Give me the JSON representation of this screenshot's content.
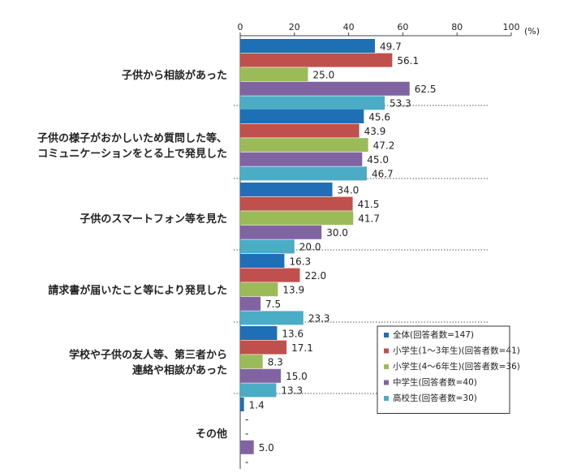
{
  "chart_data": {
    "type": "bar",
    "orientation": "horizontal",
    "unit": "(%)",
    "xlim": [
      0,
      100
    ],
    "x_ticks": [
      "0",
      "20",
      "40",
      "60",
      "80",
      "100"
    ],
    "grid": false,
    "legend_position": "bottom-right",
    "categories": [
      [
        "子供から相談があった"
      ],
      [
        "子供の様子がおかしいため質問した等、",
        "コミュニケーションをとる上で発見した"
      ],
      [
        "子供のスマートフォン等を見た"
      ],
      [
        "請求書が届いたこと等により発見した"
      ],
      [
        "学校や子供の友人等、第三者から",
        "連絡や相談があった"
      ],
      [
        "その他"
      ]
    ],
    "series": [
      {
        "name": "全体(回答者数=147)",
        "color": "#1f6fb6",
        "values": [
          49.7,
          45.6,
          34.0,
          16.3,
          13.6,
          1.4
        ],
        "labels": [
          "49.7",
          "45.6",
          "34.0",
          "16.3",
          "13.6",
          "1.4"
        ]
      },
      {
        "name": "小学生(1～3年生)(回答者数=41)",
        "color": "#c0504d",
        "values": [
          56.1,
          43.9,
          41.5,
          22.0,
          17.1,
          null
        ],
        "labels": [
          "56.1",
          "43.9",
          "41.5",
          "22.0",
          "17.1",
          "-"
        ]
      },
      {
        "name": "小学生(4～6年生)(回答者数=36)",
        "color": "#9bbb59",
        "values": [
          25.0,
          47.2,
          41.7,
          13.9,
          8.3,
          null
        ],
        "labels": [
          "25.0",
          "47.2",
          "41.7",
          "13.9",
          "8.3",
          "-"
        ]
      },
      {
        "name": "中学生(回答者数=40)",
        "color": "#8064a2",
        "values": [
          62.5,
          45.0,
          30.0,
          7.5,
          15.0,
          5.0
        ],
        "labels": [
          "62.5",
          "45.0",
          "30.0",
          "7.5",
          "15.0",
          "5.0"
        ]
      },
      {
        "name": "高校生(回答者数=30)",
        "color": "#4bacc6",
        "values": [
          53.3,
          46.7,
          20.0,
          23.3,
          13.3,
          null
        ],
        "labels": [
          "53.3",
          "46.7",
          "20.0",
          "23.3",
          "13.3",
          "-"
        ]
      }
    ]
  }
}
